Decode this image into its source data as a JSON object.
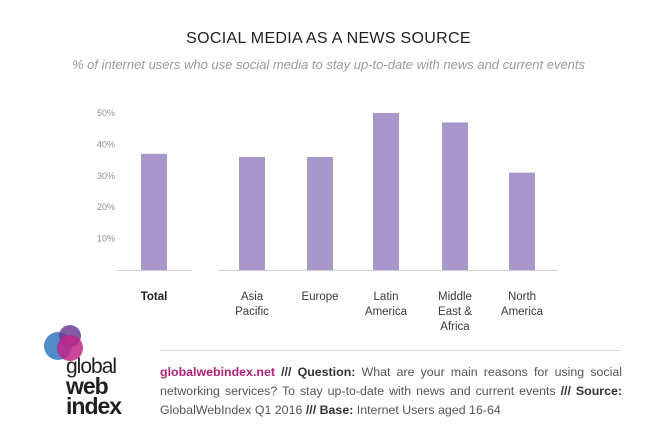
{
  "chart_data": {
    "type": "bar",
    "title": "SOCIAL MEDIA AS A NEWS SOURCE",
    "subtitle": "% of internet users who use social media to stay up-to-date with news and current events",
    "categories": [
      "Total",
      "Asia Pacific",
      "Europe",
      "Latin America",
      "Middle East & Africa",
      "North America"
    ],
    "category_lines": [
      [
        "Total"
      ],
      [
        "Asia",
        "Pacific"
      ],
      [
        "Europe"
      ],
      [
        "Latin",
        "America"
      ],
      [
        "Middle",
        "East &",
        "Africa"
      ],
      [
        "North",
        "America"
      ]
    ],
    "values": [
      37,
      36,
      36,
      50,
      47,
      31
    ],
    "ylim": [
      0,
      50
    ],
    "yticks": [
      "10%",
      "20%",
      "30%",
      "40%",
      "50%"
    ],
    "grid": false,
    "bar_color": "#a897cb",
    "axis_color": "#cfcfcf"
  },
  "logo": {
    "line1": "global",
    "line2": "web",
    "line3": "index"
  },
  "footer": {
    "site": "globalwebindex.net",
    "sep1": " /// ",
    "question_label": "Question:",
    "question_text": " What are your main reasons for using social networking services? To stay up-to-date with news and current events ",
    "sep2": "/// ",
    "source_label": "Source:",
    "source_text": " GlobalWebIndex Q1 2016 ",
    "sep3": "/// ",
    "base_label": "Base:",
    "base_text": " Internet Users aged 16-64"
  },
  "colors": {
    "site": "#b0227a",
    "logo_magenta": "#c0268a",
    "logo_blue": "#3b7fc4",
    "logo_purple": "#6a3f97"
  }
}
